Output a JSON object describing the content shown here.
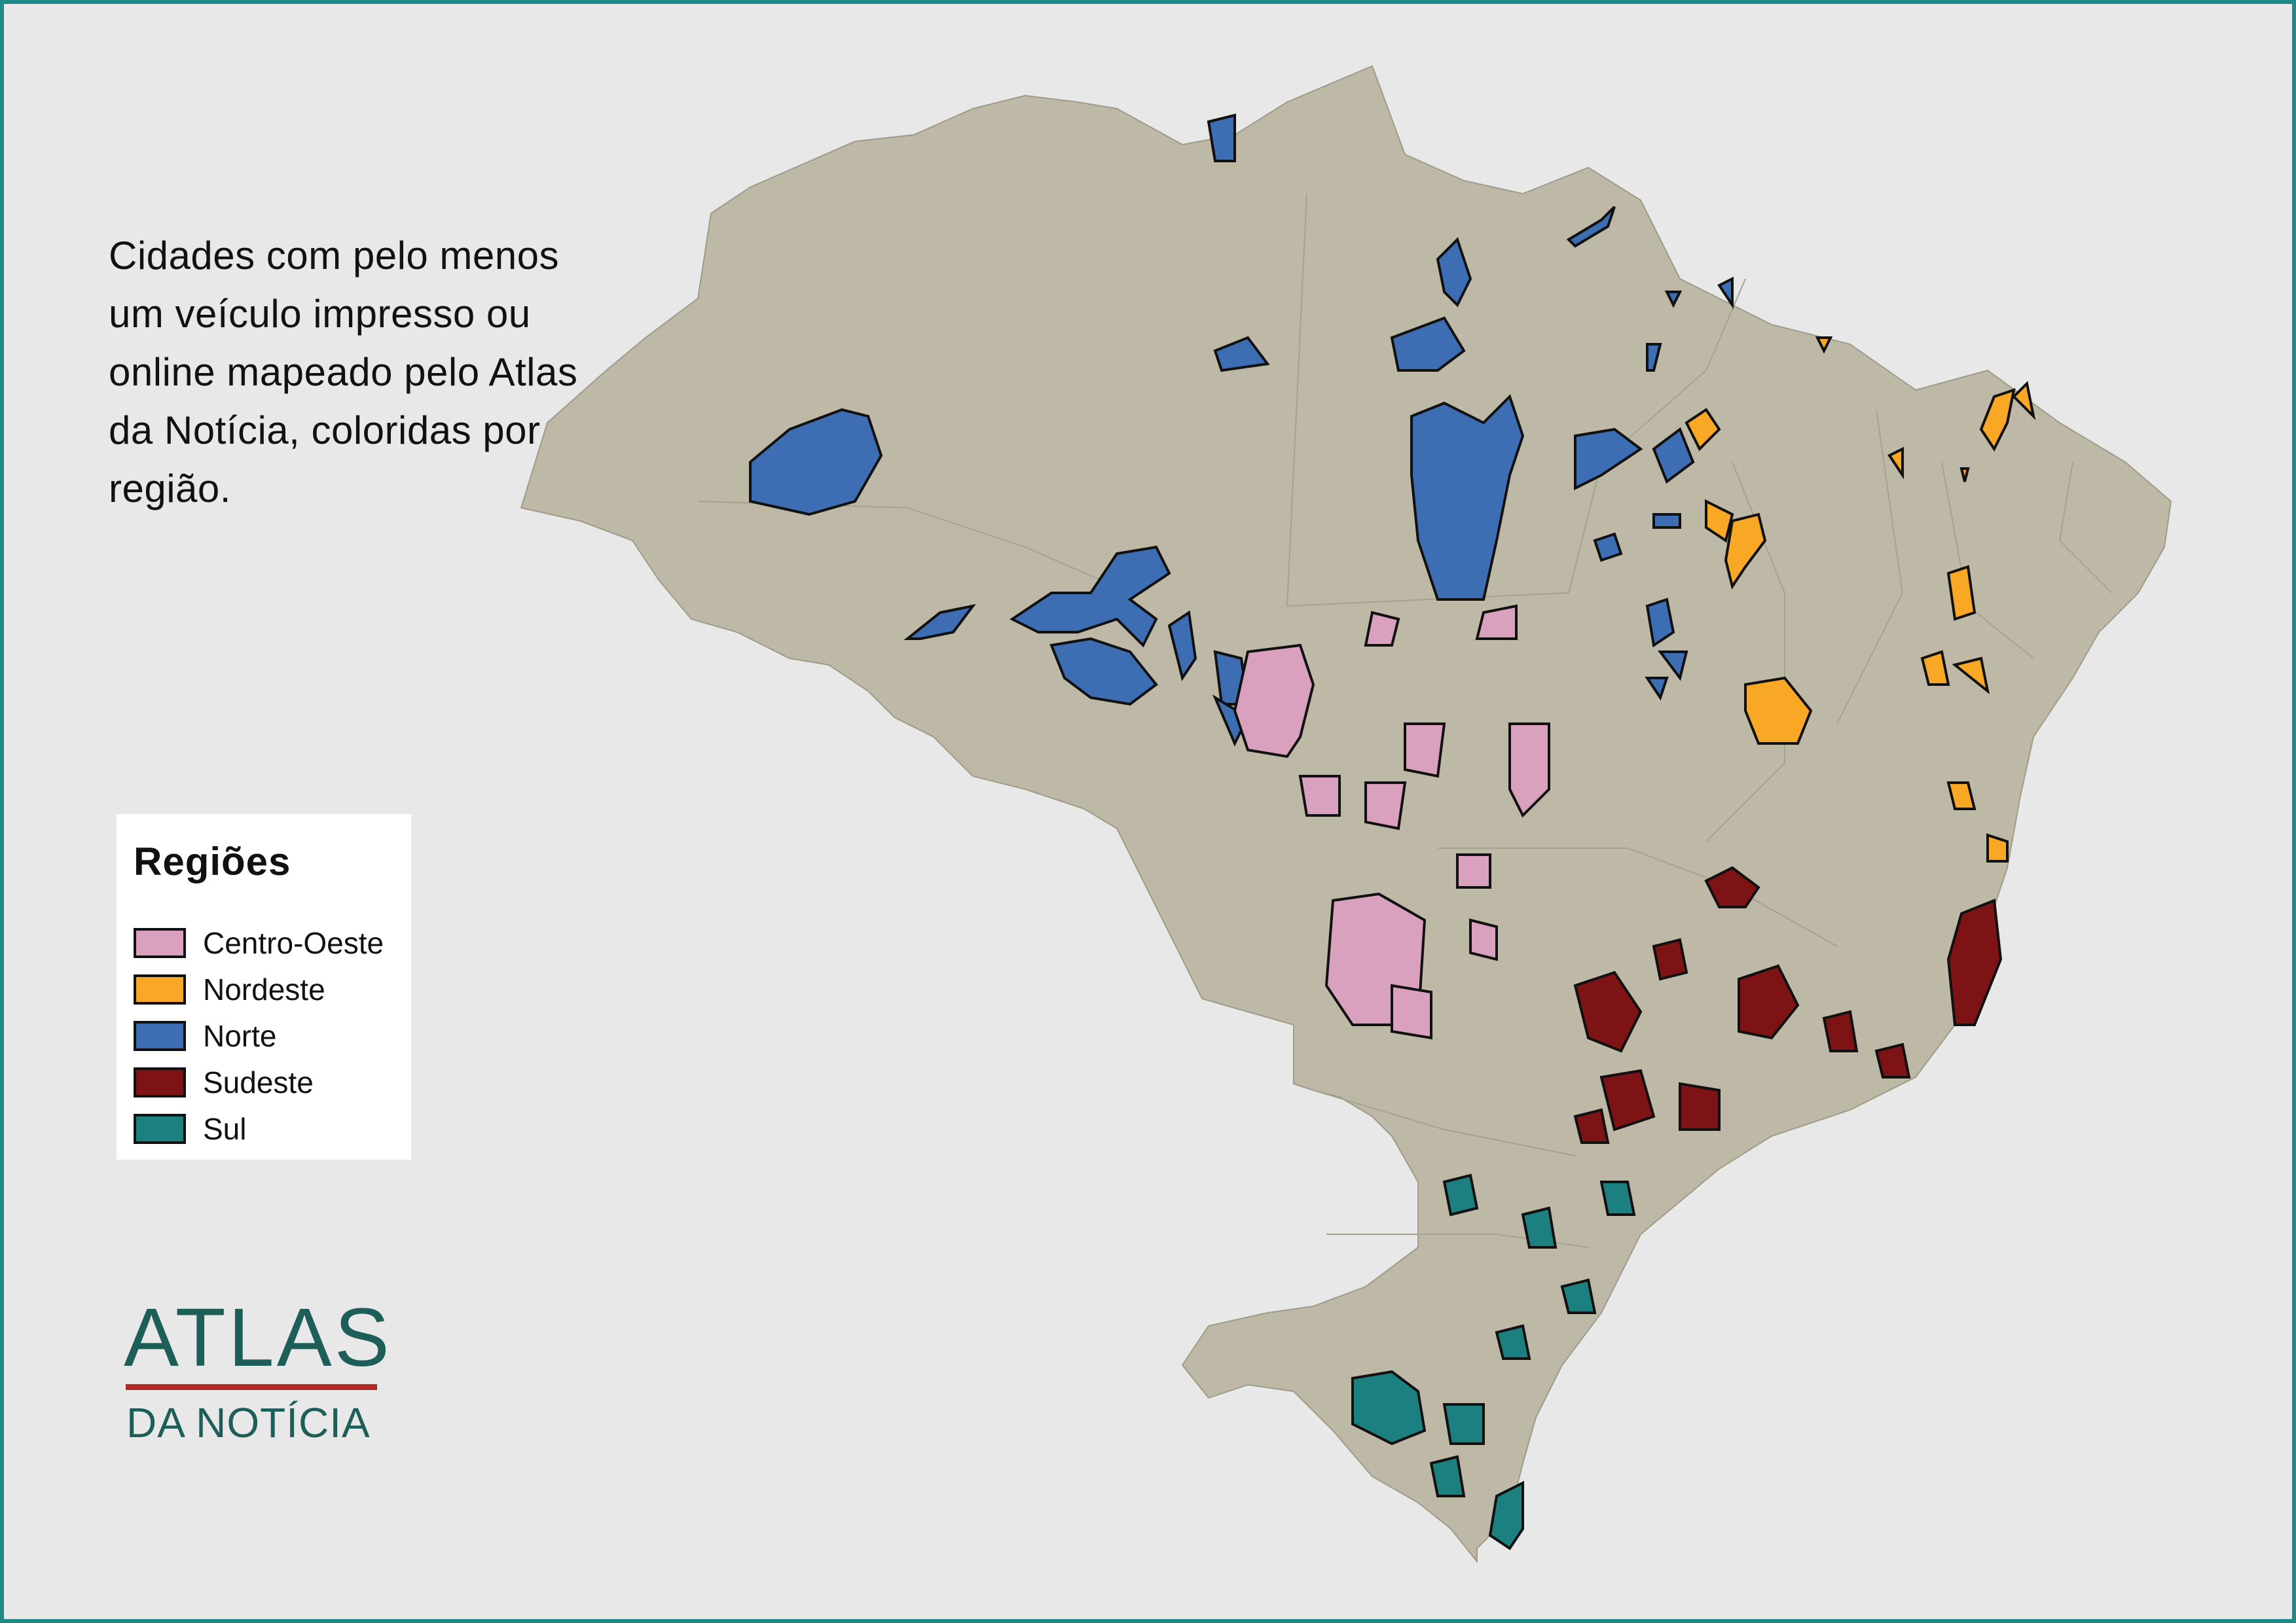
{
  "title": "Cidades com pelo menos um veículo impresso ou online mapeado pelo Atlas da Notícia, coloridas por região.",
  "legend": {
    "title": "Regiões",
    "items": [
      {
        "label": "Centro-Oeste",
        "color": "#d9a1bd"
      },
      {
        "label": "Nordeste",
        "color": "#f9a825"
      },
      {
        "label": "Norte",
        "color": "#3d6db3"
      },
      {
        "label": "Sudeste",
        "color": "#7e1316"
      },
      {
        "label": "Sul",
        "color": "#1b807f"
      }
    ]
  },
  "logo": {
    "main": "ATLAS",
    "sub": "DA NOTÍCIA"
  },
  "colors": {
    "background": "#e8e8e9",
    "frame": "#1f8a86",
    "land": "#bdb9a6",
    "outline": "#111111",
    "logo": "#1d5f58",
    "logo_rule": "#b02a28"
  }
}
